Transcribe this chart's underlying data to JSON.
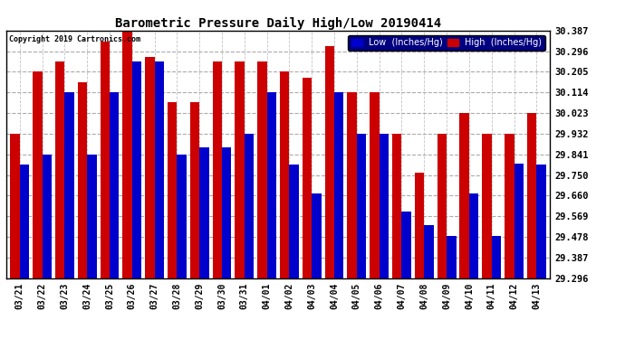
{
  "title": "Barometric Pressure Daily High/Low 20190414",
  "copyright": "Copyright 2019 Cartronics.com",
  "legend_low": "Low  (Inches/Hg)",
  "legend_high": "High  (Inches/Hg)",
  "low_color": "#0000cc",
  "high_color": "#cc0000",
  "bg_color": "#ffffff",
  "grid_color": "#aaaaaa",
  "yticks": [
    29.296,
    29.387,
    29.478,
    29.569,
    29.66,
    29.75,
    29.841,
    29.932,
    30.023,
    30.114,
    30.205,
    30.296,
    30.387
  ],
  "ymin": 29.296,
  "ymax": 30.387,
  "dates": [
    "03/21",
    "03/22",
    "03/23",
    "03/24",
    "03/25",
    "03/26",
    "03/27",
    "03/28",
    "03/29",
    "03/30",
    "03/31",
    "04/01",
    "04/02",
    "04/03",
    "04/04",
    "04/05",
    "04/06",
    "04/07",
    "04/08",
    "04/09",
    "04/10",
    "04/11",
    "04/12",
    "04/13"
  ],
  "high_values": [
    29.932,
    30.205,
    30.25,
    30.16,
    30.34,
    30.387,
    30.27,
    30.07,
    30.07,
    30.25,
    30.25,
    30.25,
    30.205,
    30.18,
    30.32,
    30.114,
    30.114,
    29.932,
    29.76,
    29.932,
    30.023,
    29.932,
    29.932,
    30.023
  ],
  "low_values": [
    29.795,
    29.841,
    30.114,
    29.841,
    30.114,
    30.25,
    30.25,
    29.841,
    29.87,
    29.87,
    29.932,
    30.114,
    29.795,
    29.67,
    30.114,
    29.932,
    29.932,
    29.59,
    29.53,
    29.48,
    29.67,
    29.48,
    29.8,
    29.795
  ]
}
